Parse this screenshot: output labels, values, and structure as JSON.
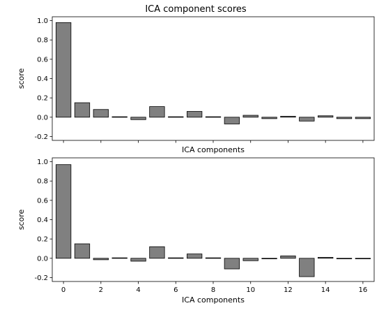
{
  "figure": {
    "title": "ICA component scores"
  },
  "chart_data": [
    {
      "type": "bar",
      "title": "",
      "xlabel": "ICA components",
      "ylabel": "score",
      "x": [
        0,
        1,
        2,
        3,
        4,
        5,
        6,
        7,
        8,
        9,
        10,
        11,
        12,
        13,
        14,
        15,
        16
      ],
      "values": [
        0.98,
        0.15,
        0.08,
        0.005,
        -0.025,
        0.11,
        0.005,
        0.06,
        0.005,
        -0.07,
        0.02,
        -0.015,
        0.01,
        -0.04,
        0.015,
        -0.015,
        -0.015
      ],
      "xlim": [
        -0.6,
        16.6
      ],
      "ylim": [
        -0.24,
        1.04
      ],
      "yticks": [
        -0.2,
        0.0,
        0.2,
        0.4,
        0.6,
        0.8,
        1.0
      ],
      "xticks": [
        0,
        2,
        4,
        6,
        8,
        10,
        12,
        14,
        16
      ],
      "show_xticklabels": false,
      "bar_color": "#808080",
      "edge_color": "#000000",
      "grid": false
    },
    {
      "type": "bar",
      "title": "",
      "xlabel": "ICA components",
      "ylabel": "score",
      "x": [
        0,
        1,
        2,
        3,
        4,
        5,
        6,
        7,
        8,
        9,
        10,
        11,
        12,
        13,
        14,
        15,
        16
      ],
      "values": [
        0.97,
        0.15,
        -0.015,
        0.005,
        -0.03,
        0.12,
        0.005,
        0.045,
        0.005,
        -0.11,
        -0.025,
        -0.005,
        0.025,
        -0.19,
        0.01,
        0.0,
        -0.005
      ],
      "xlim": [
        -0.6,
        16.6
      ],
      "ylim": [
        -0.24,
        1.04
      ],
      "yticks": [
        -0.2,
        0.0,
        0.2,
        0.4,
        0.6,
        0.8,
        1.0
      ],
      "xticks": [
        0,
        2,
        4,
        6,
        8,
        10,
        12,
        14,
        16
      ],
      "show_xticklabels": true,
      "bar_color": "#808080",
      "edge_color": "#000000",
      "grid": false
    }
  ]
}
